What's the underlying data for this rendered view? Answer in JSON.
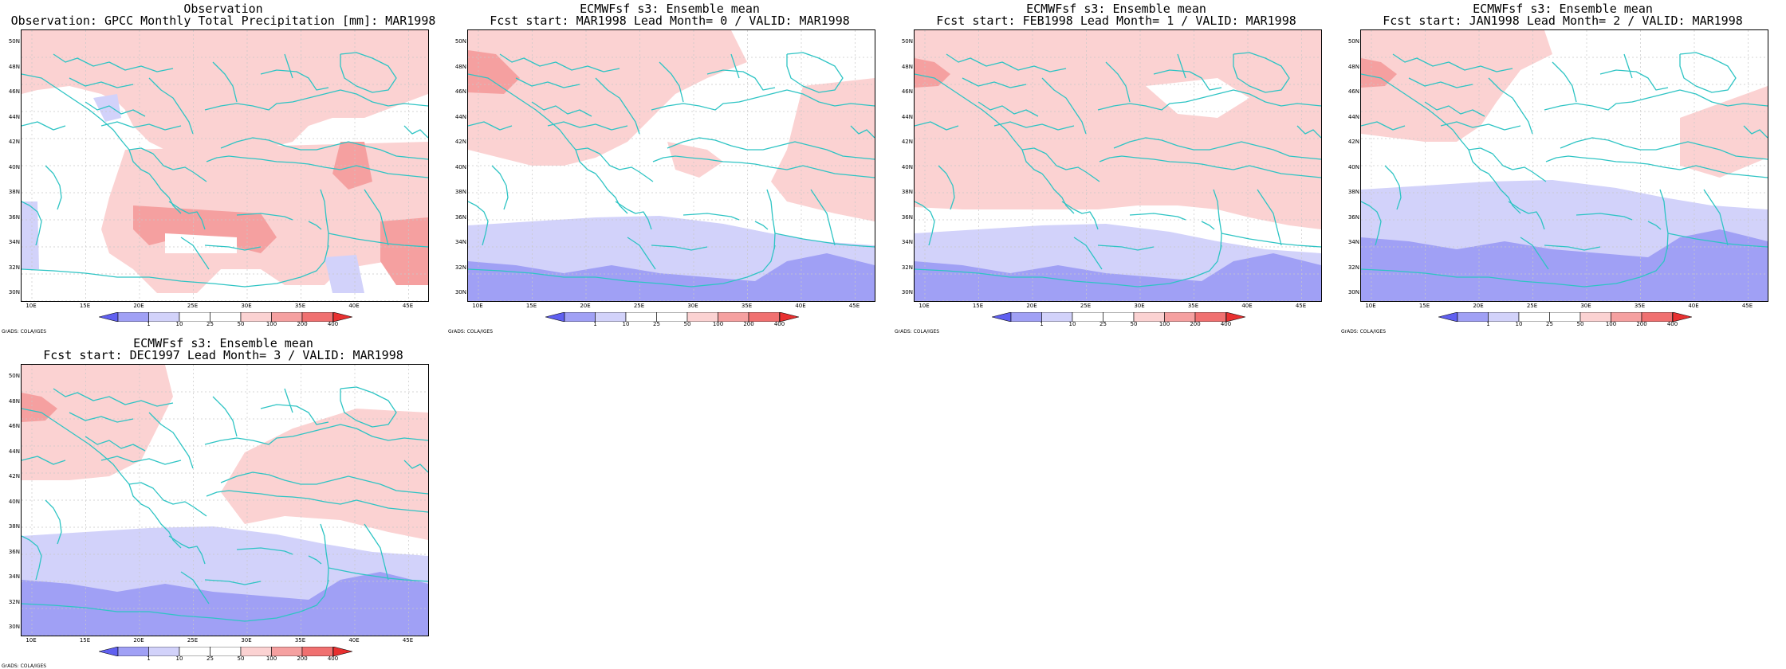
{
  "colors": {
    "coast": "#2ec4c4",
    "grid": "#c8c8c8",
    "neg2": "#a0a0f5",
    "neg1": "#d2d2fa",
    "pos1": "#fbd2d2",
    "pos2": "#f5a0a0",
    "pos3": "#f07070"
  },
  "lat_labels": [
    "50N",
    "48N",
    "46N",
    "44N",
    "42N",
    "40N",
    "38N",
    "36N",
    "34N",
    "32N",
    "30N"
  ],
  "lon_labels": [
    "10E",
    "15E",
    "20E",
    "25E",
    "30E",
    "35E",
    "40E",
    "45E"
  ],
  "colorbar_labels": [
    "1",
    "10",
    "25",
    "50",
    "100",
    "200",
    "400"
  ],
  "credit": "GrADS: COLA/IGES",
  "panels": [
    {
      "id": "obs",
      "line1": "Observation",
      "line2": "Observation: GPCC Monthly Total Precipitation [mm]: MAR1998",
      "style": "obs"
    },
    {
      "id": "lead0",
      "line1": "ECMWFsf s3: Ensemble mean",
      "line2": "Fcst start: MAR1998  Lead Month= 0 / VALID: MAR1998",
      "style": "lead0"
    },
    {
      "id": "lead1",
      "line1": "ECMWFsf s3: Ensemble mean",
      "line2": "Fcst start: FEB1998  Lead Month= 1 / VALID: MAR1998",
      "style": "lead1"
    },
    {
      "id": "lead2",
      "line1": "ECMWFsf s3: Ensemble mean",
      "line2": "Fcst start: JAN1998  Lead Month= 2 / VALID: MAR1998",
      "style": "lead2"
    },
    {
      "id": "lead3",
      "line1": "ECMWFsf s3: Ensemble mean",
      "line2": "Fcst start: DEC1997  Lead Month= 3 / VALID: MAR1998",
      "style": "lead3"
    }
  ]
}
